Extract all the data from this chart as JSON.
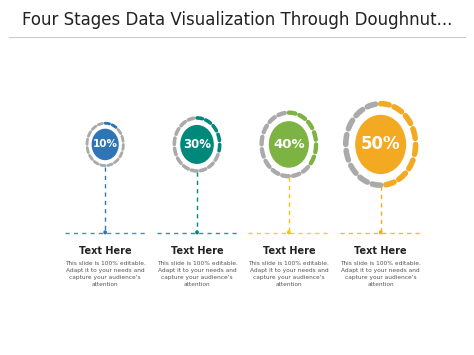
{
  "title": "Four Stages Data Visualization Through Doughnut...",
  "title_fontsize": 12,
  "background_color": "#ffffff",
  "stages": [
    {
      "pct": 10,
      "label": "10%",
      "fill_color": "#2e75b6",
      "ring_color": "#2e75b6",
      "line_color": "#2e75b6",
      "dot_color": "#2e75b6",
      "size_scale": 0.52,
      "label_fontsize": 7.5
    },
    {
      "pct": 30,
      "label": "30%",
      "fill_color": "#00897b",
      "ring_color": "#00897b",
      "line_color": "#00897b",
      "dot_color": "#00897b",
      "size_scale": 0.65,
      "label_fontsize": 8.5
    },
    {
      "pct": 40,
      "label": "40%",
      "fill_color": "#7cb342",
      "ring_color": "#7cb342",
      "line_color": "#ffc107",
      "dot_color": "#ffc107",
      "size_scale": 0.78,
      "label_fontsize": 9.5
    },
    {
      "pct": 50,
      "label": "50%",
      "fill_color": "#f4a922",
      "ring_color": "#f4a922",
      "line_color": "#f4a922",
      "dot_color": "#f4a922",
      "size_scale": 1.0,
      "label_fontsize": 12
    }
  ],
  "text_header": "Text Here",
  "text_body": "This slide is 100% editable.\nAdapt it to your needs and\ncapture your audience's\nattention",
  "gray_color": "#aaaaaa"
}
